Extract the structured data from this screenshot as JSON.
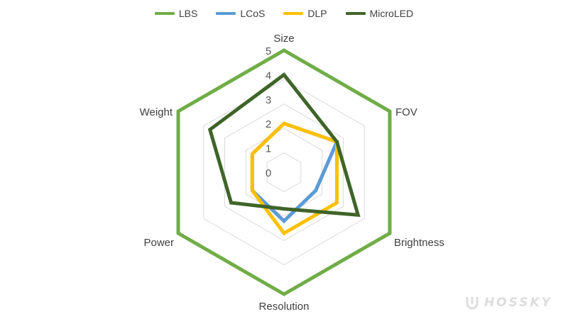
{
  "chart_data": {
    "type": "radar",
    "axes": [
      "Size",
      "FOV",
      "Brightness",
      "Resolution",
      "Power",
      "Weight"
    ],
    "scale": {
      "min": 0,
      "max": 5,
      "ticks": [
        "0",
        "1",
        "2",
        "3",
        "4",
        "5"
      ]
    },
    "grid": true,
    "legend_position": "top",
    "series": [
      {
        "name": "LBS",
        "color": "#70AD47",
        "values": [
          5,
          5,
          5,
          5,
          5,
          5
        ]
      },
      {
        "name": "LCoS",
        "color": "#5B9BD5",
        "values": [
          2,
          2.5,
          1.5,
          2,
          1.5,
          1.5
        ]
      },
      {
        "name": "DLP",
        "color": "#FFC000",
        "values": [
          2,
          2.5,
          2.5,
          2.5,
          1.5,
          1.5
        ]
      },
      {
        "name": "MicroLED",
        "color": "#3F6428",
        "values": [
          4,
          2.5,
          3.5,
          1.5,
          2.5,
          3.5
        ]
      }
    ]
  },
  "watermark": {
    "text": "HOSSKY"
  }
}
